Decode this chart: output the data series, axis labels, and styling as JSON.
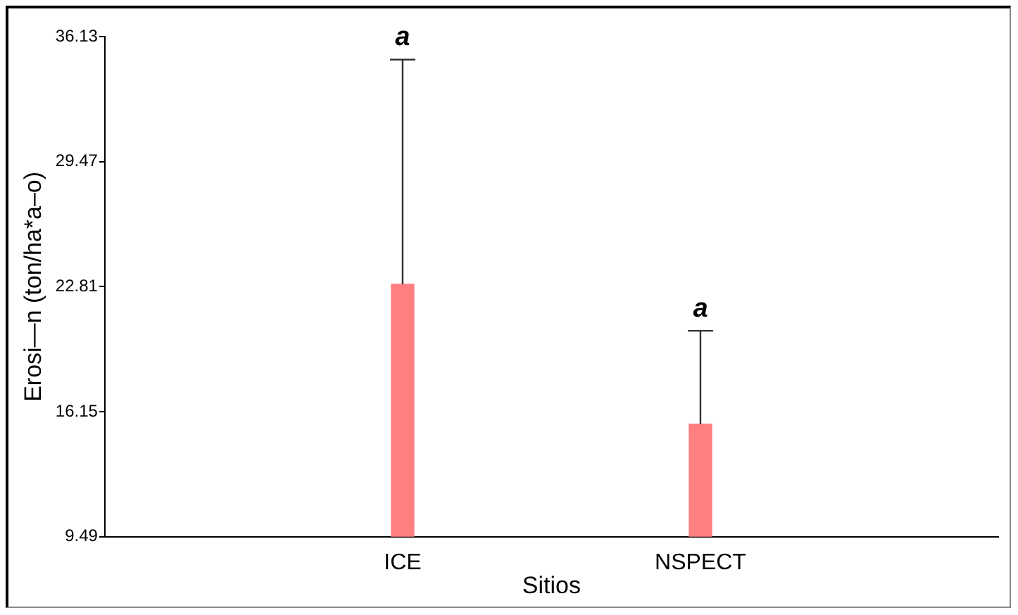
{
  "chart_data": {
    "type": "bar",
    "xlabel": "Sitios",
    "ylabel": "Erosi—n (ton/ha*a–o)",
    "categories": [
      null,
      "ICE",
      "NSPECT",
      null
    ],
    "values": [
      null,
      22.94,
      15.49,
      null
    ],
    "errors": [
      null,
      [
        22.94,
        34.9
      ],
      [
        15.49,
        20.46
      ],
      null
    ],
    "color": "#ff7f7f",
    "ylim": [
      9.49,
      36.13
    ],
    "yticks": [
      9.49,
      16.15,
      22.81,
      29.47,
      36.13
    ],
    "annotations": [
      {
        "text": "a",
        "x": "ICE",
        "y": 34.9
      },
      {
        "text": "a",
        "x": "NSPECT",
        "y": 20.46
      }
    ],
    "grid": false
  }
}
